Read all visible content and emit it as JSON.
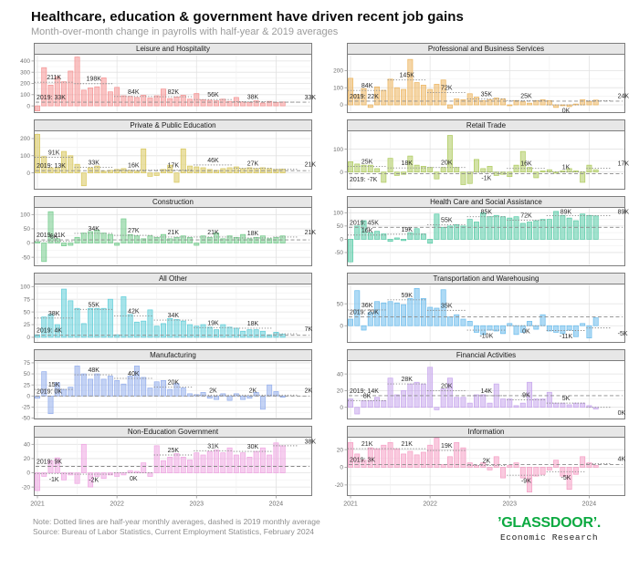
{
  "title": "Healthcare, education & government have driven recent job gains",
  "subtitle": "Month-over-month change in payrolls with half-year & 2019 averages",
  "x_axis_years": [
    "2021",
    "2022",
    "2023",
    "2024"
  ],
  "footer": {
    "note": "Note: Dotted lines are half-year monthly averages, dashed is 2019 monthly average",
    "source": "Source: Bureau of Labor Statistics, Current Employment Statistics, February 2024",
    "logo_text": "’GLASSDOOR’.",
    "logo_tagline": "Economic Research",
    "logo_color": "#0caa41"
  },
  "chart_data": [
    {
      "type": "bar",
      "title": "Leisure and Hospitality",
      "color": "#f59393",
      "avg_2019": {
        "label": "2019: 33K",
        "value": 33
      },
      "half_year_averages": {
        "periods": [
          "2021H1",
          "2021H2",
          "2022H1",
          "2022H2",
          "2023H1",
          "2023H2",
          "2024"
        ],
        "labels": [
          "211K",
          "198K",
          "84K",
          "82K",
          "56K",
          "38K",
          "33K"
        ],
        "values": [
          211,
          198,
          84,
          82,
          56,
          38,
          33
        ]
      },
      "monthly_values": [
        -45,
        340,
        185,
        260,
        215,
        310,
        435,
        140,
        160,
        170,
        250,
        125,
        165,
        90,
        85,
        75,
        95,
        70,
        90,
        150,
        65,
        80,
        95,
        60,
        110,
        55,
        50,
        45,
        60,
        40,
        75,
        35,
        30,
        45,
        25,
        40,
        30,
        35
      ],
      "ylim": [
        -60,
        460
      ],
      "yticks": [
        0,
        100,
        200,
        300,
        400
      ]
    },
    {
      "type": "bar",
      "title": "Professional and Business Services",
      "color": "#ecb45e",
      "avg_2019": {
        "label": "2019: 22K",
        "value": 22
      },
      "half_year_averages": {
        "periods": [
          "2021H1",
          "2021H2",
          "2022H1",
          "2022H2",
          "2023H1",
          "2023H2",
          "2024"
        ],
        "labels": [
          "84K",
          "145K",
          "72K",
          "35K",
          "25K",
          "0K",
          "24K"
        ],
        "values": [
          84,
          145,
          72,
          35,
          25,
          0,
          24
        ]
      },
      "monthly_values": [
        155,
        60,
        95,
        -15,
        105,
        85,
        150,
        100,
        90,
        265,
        130,
        115,
        90,
        120,
        145,
        -20,
        35,
        30,
        65,
        45,
        25,
        30,
        40,
        35,
        -5,
        25,
        20,
        10,
        25,
        30,
        25,
        -15,
        -5,
        -10,
        5,
        30,
        20,
        28
      ],
      "ylim": [
        -45,
        295
      ],
      "yticks": [
        0,
        100,
        200
      ]
    },
    {
      "type": "bar",
      "title": "Private & Public Education",
      "color": "#d8c75b",
      "avg_2019": {
        "label": "2019: 13K",
        "value": 13
      },
      "half_year_averages": {
        "periods": [
          "2021H1",
          "2021H2",
          "2022H1",
          "2022H2",
          "2023H1",
          "2023H2",
          "2024"
        ],
        "labels": [
          "91K",
          "33K",
          "16K",
          "17K",
          "46K",
          "27K",
          "21K"
        ],
        "values": [
          91,
          33,
          16,
          17,
          46,
          27,
          21
        ]
      },
      "monthly_values": [
        225,
        95,
        30,
        30,
        125,
        100,
        50,
        -75,
        30,
        40,
        10,
        15,
        20,
        25,
        15,
        10,
        140,
        -20,
        -15,
        20,
        45,
        -55,
        140,
        40,
        35,
        30,
        20,
        15,
        25,
        30,
        35,
        25,
        30,
        25,
        30,
        25,
        20,
        22
      ],
      "ylim": [
        -95,
        245
      ],
      "yticks": [
        0,
        100,
        200
      ]
    },
    {
      "type": "bar",
      "title": "Retail Trade",
      "color": "#aecb5f",
      "avg_2019": {
        "label": "2019: -7K",
        "value": -7
      },
      "half_year_averages": {
        "periods": [
          "2021H1",
          "2021H2",
          "2022H1",
          "2022H2",
          "2023H1",
          "2023H2",
          "2024"
        ],
        "labels": [
          "25K",
          "18K",
          "20K",
          "-1K",
          "16K",
          "1K",
          "17K"
        ],
        "values": [
          25,
          18,
          20,
          -1,
          16,
          1,
          17
        ]
      },
      "monthly_values": [
        45,
        35,
        30,
        30,
        15,
        -45,
        60,
        -15,
        -10,
        70,
        30,
        25,
        20,
        -30,
        20,
        160,
        20,
        -55,
        -50,
        55,
        15,
        25,
        -15,
        -10,
        -20,
        30,
        90,
        20,
        -25,
        5,
        10,
        -5,
        5,
        15,
        5,
        -45,
        30,
        10
      ],
      "ylim": [
        -75,
        180
      ],
      "yticks": [
        0,
        100
      ]
    },
    {
      "type": "bar",
      "title": "Construction",
      "color": "#72cb8b",
      "avg_2019": {
        "label": "2019: 11K",
        "value": 11
      },
      "half_year_averages": {
        "periods": [
          "2021H1",
          "2021H2",
          "2022H1",
          "2022H2",
          "2023H1",
          "2023H2",
          "2024"
        ],
        "labels": [
          "6K",
          "34K",
          "27K",
          "21K",
          "21K",
          "18K",
          "21K"
        ],
        "values": [
          6,
          34,
          27,
          21,
          21,
          18,
          21
        ]
      },
      "monthly_values": [
        5,
        -65,
        110,
        15,
        -10,
        -8,
        20,
        35,
        40,
        45,
        35,
        30,
        -8,
        85,
        30,
        25,
        15,
        25,
        20,
        30,
        15,
        20,
        25,
        20,
        -8,
        25,
        20,
        35,
        15,
        25,
        20,
        30,
        15,
        20,
        25,
        15,
        20,
        25
      ],
      "ylim": [
        -80,
        125
      ],
      "yticks": [
        -50,
        0,
        50,
        100
      ]
    },
    {
      "type": "bar",
      "title": "Health Care and Social Assistance",
      "color": "#55cba6",
      "avg_2019": {
        "label": "2019: 45K",
        "value": 45
      },
      "half_year_averages": {
        "periods": [
          "2021H1",
          "2021H2",
          "2022H1",
          "2022H2",
          "2023H1",
          "2023H2",
          "2024"
        ],
        "labels": [
          "16K",
          "19K",
          "55K",
          "85K",
          "72K",
          "89K",
          "89K"
        ],
        "values": [
          16,
          19,
          55,
          85,
          72,
          89,
          89
        ]
      },
      "monthly_values": [
        -85,
        50,
        70,
        25,
        30,
        20,
        -8,
        5,
        -5,
        25,
        40,
        20,
        -15,
        95,
        45,
        50,
        55,
        50,
        75,
        65,
        100,
        85,
        90,
        85,
        80,
        85,
        60,
        65,
        70,
        75,
        75,
        105,
        90,
        80,
        70,
        95,
        90,
        88
      ],
      "ylim": [
        -100,
        120
      ],
      "yticks": [
        -50,
        0,
        50,
        100
      ]
    },
    {
      "type": "bar",
      "title": "All Other",
      "color": "#5ecdd8",
      "avg_2019": {
        "label": "2019: 4K",
        "value": 4
      },
      "half_year_averages": {
        "periods": [
          "2021H1",
          "2021H2",
          "2022H1",
          "2022H2",
          "2023H1",
          "2023H2",
          "2024"
        ],
        "labels": [
          "38K",
          "55K",
          "42K",
          "34K",
          "19K",
          "18K",
          "7K"
        ],
        "values": [
          38,
          55,
          42,
          34,
          19,
          18,
          7
        ]
      },
      "monthly_values": [
        5,
        40,
        45,
        25,
        95,
        72,
        57,
        27,
        57,
        57,
        57,
        75,
        5,
        80,
        45,
        30,
        32,
        54,
        22,
        27,
        37,
        35,
        32,
        25,
        22,
        25,
        20,
        15,
        25,
        20,
        18,
        12,
        15,
        15,
        12,
        5,
        10,
        6
      ],
      "ylim": [
        -10,
        105
      ],
      "yticks": [
        0,
        25,
        50,
        75,
        100
      ]
    },
    {
      "type": "bar",
      "title": "Transportation and Warehousing",
      "color": "#6bbcec",
      "avg_2019": {
        "label": "2019: 20K",
        "value": 20
      },
      "half_year_averages": {
        "periods": [
          "2021H1",
          "2021H2",
          "2022H1",
          "2022H2",
          "2023H1",
          "2023H2",
          "2024"
        ],
        "labels": [
          "36K",
          "59K",
          "35K",
          "-10K",
          "0K",
          "-11K",
          "-5K"
        ],
        "values": [
          36,
          59,
          35,
          -10,
          0,
          -11,
          -5
        ]
      },
      "monthly_values": [
        15,
        80,
        -10,
        30,
        55,
        52,
        55,
        52,
        48,
        62,
        85,
        62,
        42,
        40,
        82,
        20,
        25,
        15,
        10,
        -15,
        -20,
        -10,
        -12,
        -18,
        5,
        -20,
        -15,
        10,
        -8,
        25,
        -12,
        -15,
        -18,
        -10,
        -25,
        5,
        -28,
        18
      ],
      "ylim": [
        -38,
        95
      ],
      "yticks": [
        0,
        50
      ]
    },
    {
      "type": "bar",
      "title": "Manufacturing",
      "color": "#94aeec",
      "avg_2019": {
        "label": "2019: 0K",
        "value": 0
      },
      "half_year_averages": {
        "periods": [
          "2021H1",
          "2021H2",
          "2022H1",
          "2022H2",
          "2023H1",
          "2023H2",
          "2024"
        ],
        "labels": [
          "15K",
          "48K",
          "40K",
          "20K",
          "2K",
          "2K",
          "2K"
        ],
        "values": [
          15,
          48,
          40,
          20,
          2,
          2,
          2
        ]
      },
      "monthly_values": [
        -5,
        55,
        -40,
        30,
        15,
        20,
        68,
        50,
        38,
        50,
        38,
        45,
        35,
        27,
        45,
        68,
        42,
        18,
        32,
        35,
        15,
        28,
        18,
        5,
        3,
        8,
        -5,
        -8,
        5,
        -10,
        5,
        -8,
        -5,
        8,
        -30,
        25,
        10,
        -3
      ],
      "ylim": [
        -52,
        80
      ],
      "yticks": [
        -50,
        -25,
        0,
        25,
        50,
        75
      ]
    },
    {
      "type": "bar",
      "title": "Financial Activities",
      "color": "#c6a5ec",
      "avg_2019": {
        "label": "2019: 14K",
        "value": 14
      },
      "half_year_averages": {
        "periods": [
          "2021H1",
          "2021H2",
          "2022H1",
          "2022H2",
          "2023H1",
          "2023H2",
          "2024"
        ],
        "labels": [
          "8K",
          "28K",
          "20K",
          "14K",
          "9K",
          "5K",
          "0K"
        ],
        "values": [
          8,
          28,
          20,
          14,
          9,
          5,
          0
        ]
      },
      "monthly_values": [
        10,
        -8,
        8,
        8,
        12,
        8,
        35,
        15,
        20,
        28,
        30,
        28,
        48,
        -3,
        22,
        35,
        12,
        12,
        5,
        15,
        15,
        5,
        28,
        10,
        10,
        2,
        5,
        30,
        10,
        10,
        18,
        5,
        5,
        3,
        5,
        5,
        2,
        -2
      ],
      "ylim": [
        -14,
        56
      ],
      "yticks": [
        0,
        20,
        40
      ]
    },
    {
      "type": "bar",
      "title": "Non-Education Government",
      "color": "#efa5e2",
      "avg_2019": {
        "label": "2019: 9K",
        "value": 9
      },
      "half_year_averages": {
        "periods": [
          "2021H1",
          "2021H2",
          "2022H1",
          "2022H2",
          "2023H1",
          "2023H2",
          "2024"
        ],
        "labels": [
          "-1K",
          "-2K",
          "0K",
          "25K",
          "31K",
          "30K",
          "38K"
        ],
        "values": [
          -1,
          -2,
          0,
          25,
          31,
          30,
          38
        ]
      },
      "monthly_values": [
        -25,
        -5,
        17,
        21,
        -10,
        -3,
        -15,
        40,
        -20,
        -5,
        -8,
        -3,
        -5,
        -3,
        3,
        2,
        14,
        -5,
        38,
        17,
        22,
        27,
        22,
        18,
        28,
        25,
        30,
        32,
        28,
        35,
        25,
        28,
        22,
        30,
        35,
        25,
        42,
        38
      ],
      "ylim": [
        -32,
        50
      ],
      "yticks": [
        -20,
        0,
        20,
        40
      ]
    },
    {
      "type": "bar",
      "title": "Information",
      "color": "#f59ec4",
      "avg_2019": {
        "label": "2019: 3K",
        "value": 3
      },
      "half_year_averages": {
        "periods": [
          "2021H1",
          "2021H2",
          "2022H1",
          "2022H2",
          "2023H1",
          "2023H2",
          "2024"
        ],
        "labels": [
          "21K",
          "21K",
          "19K",
          "2K",
          "-9K",
          "-5K",
          "4K"
        ],
        "values": [
          21,
          21,
          19,
          2,
          -9,
          -5,
          4
        ]
      },
      "monthly_values": [
        28,
        15,
        8,
        22,
        21,
        25,
        28,
        21,
        15,
        18,
        14,
        17,
        25,
        33,
        3,
        12,
        28,
        22,
        5,
        2,
        5,
        -3,
        12,
        -12,
        2,
        5,
        -12,
        -28,
        -10,
        -8,
        -3,
        8,
        -10,
        -25,
        -8,
        12,
        5,
        2
      ],
      "ylim": [
        -32,
        34
      ],
      "yticks": [
        -20,
        0,
        20
      ]
    }
  ]
}
